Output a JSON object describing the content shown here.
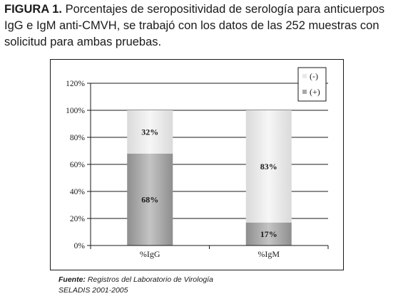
{
  "caption": {
    "label": "FIGURA 1.",
    "text": " Porcentajes de seropositividad de serología para anticuerpos IgG e IgM anti-CMVH, se trabajó con los datos de las 252 muestras con solicitud para ambas pruebas."
  },
  "source": {
    "label": "Fuente:",
    "text": " Registros del Laboratorio de Virología",
    "line2": "SELADIS 2001-2005"
  },
  "chart_data": {
    "type": "bar",
    "stacked": true,
    "categories": [
      "%IgG",
      "%IgM"
    ],
    "series": [
      {
        "name": "(+)",
        "values": [
          68,
          17
        ],
        "labels": [
          "68%",
          "17%"
        ],
        "color": "#a9a9a9"
      },
      {
        "name": "(-)",
        "values": [
          32,
          83
        ],
        "labels": [
          "32%",
          "83%"
        ],
        "color": "#e8e8e8"
      }
    ],
    "title": "",
    "xlabel": "",
    "ylabel": "",
    "ylim": [
      0,
      120
    ],
    "yticks": [
      0,
      20,
      40,
      60,
      80,
      100,
      120
    ],
    "ytick_labels": [
      "0%",
      "20%",
      "40%",
      "60%",
      "80%",
      "100%",
      "120%"
    ],
    "grid": true,
    "legend_position": "top-right",
    "legend": [
      "(-)",
      "(+)"
    ]
  }
}
